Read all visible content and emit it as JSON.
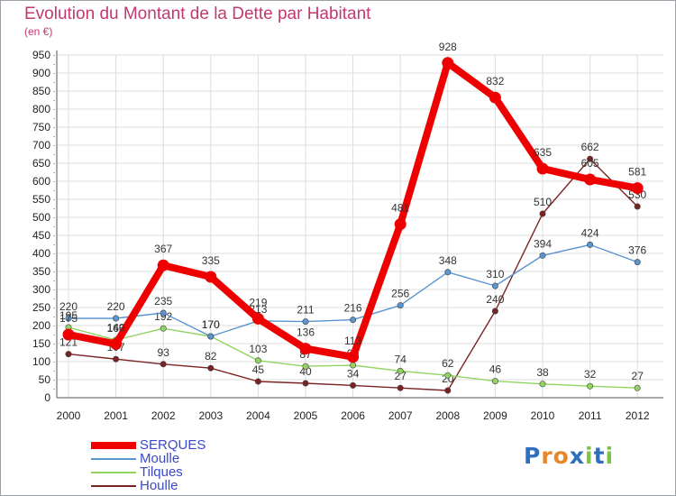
{
  "title": "Evolution du Montant de la Dette par Habitant",
  "unit": "(en €)",
  "brand": {
    "name": "Proxiti",
    "letters": [
      "P",
      "r",
      "o",
      "x",
      "i",
      "t",
      "i"
    ],
    "colors": [
      "#2e6fc0",
      "#e8862a",
      "#e8862a",
      "#2e6fc0",
      "#7cc244",
      "#2e6fc0",
      "#7cc244"
    ]
  },
  "chart_data": {
    "type": "line",
    "x": [
      "2000",
      "2001",
      "2002",
      "2003",
      "2004",
      "2005",
      "2006",
      "2007",
      "2008",
      "2009",
      "2010",
      "2011",
      "2012"
    ],
    "ylim": [
      0,
      950
    ],
    "yticks": [
      0,
      50,
      100,
      150,
      200,
      250,
      300,
      350,
      400,
      450,
      500,
      550,
      600,
      650,
      700,
      750,
      800,
      850,
      900,
      950
    ],
    "grid": true,
    "legend": "bottom-left",
    "series": [
      {
        "name": "Houlle",
        "color": "#7b2323",
        "values": [
          121,
          107,
          93,
          82,
          45,
          40,
          34,
          27,
          20,
          240,
          510,
          662,
          530
        ]
      },
      {
        "name": "Tilques",
        "color": "#92d460",
        "values": [
          195,
          160,
          192,
          170,
          103,
          87,
          90,
          74,
          62,
          46,
          38,
          32,
          27
        ]
      },
      {
        "name": "Moulle",
        "color": "#5b95cf",
        "values": [
          220,
          220,
          235,
          170,
          213,
          211,
          216,
          256,
          348,
          310,
          394,
          424,
          376
        ]
      },
      {
        "name": "SERQUES",
        "color": "#ee0000",
        "values": [
          175,
          149,
          367,
          335,
          219,
          136,
          113,
          481,
          928,
          832,
          635,
          605,
          581
        ]
      }
    ]
  }
}
